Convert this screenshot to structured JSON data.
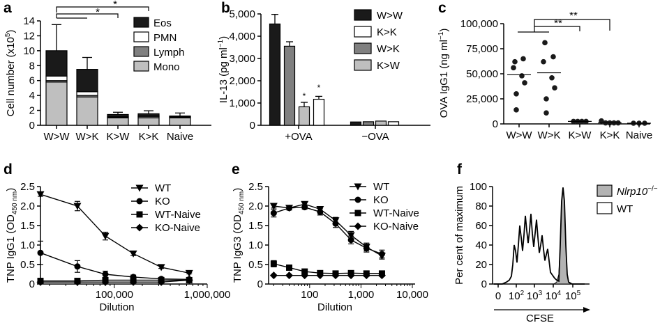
{
  "figure_labels": [
    "a",
    "b",
    "c",
    "d",
    "e",
    "f"
  ],
  "colors": {
    "eos": "#1a1a1a",
    "pmn": "#ffffff",
    "lymph": "#808080",
    "mono": "#bfbfbf",
    "ko_fill": "#b3b3b3",
    "wt_line": "#000000"
  },
  "chart_data": [
    {
      "id": "a",
      "type": "bar",
      "stacked": true,
      "ylabel": "Cell number (x10",
      "ylabel_sup": "5",
      "ylabel_end": ")",
      "ylim": [
        0,
        14
      ],
      "yticks": [
        "0",
        "2",
        "4",
        "6",
        "8",
        "10",
        "12",
        "14"
      ],
      "categories": [
        "W>W",
        "W>K",
        "K>W",
        "K>K",
        "Naive"
      ],
      "series": [
        {
          "name": "Mono",
          "values": [
            5.8,
            3.8,
            1.0,
            1.0,
            1.0
          ]
        },
        {
          "name": "Lymph",
          "values": [
            0.2,
            0.2,
            0.1,
            0.2,
            0.1
          ]
        },
        {
          "name": "PMN",
          "values": [
            0.6,
            0.5,
            0.05,
            0.05,
            0.05
          ]
        },
        {
          "name": "Eos",
          "values": [
            3.4,
            3.0,
            0.3,
            0.3,
            0.1
          ]
        }
      ],
      "errors": [
        3.5,
        1.6,
        0.3,
        0.4,
        0.4
      ],
      "legend_order": [
        "Eos",
        "PMN",
        "Lymph",
        "Mono"
      ],
      "stars": [
        "*",
        "*"
      ]
    },
    {
      "id": "b",
      "type": "bar",
      "ylabel": "IL-13 (pg ml",
      "ylabel_sup": "−1",
      "ylabel_end": ")",
      "ylim": [
        0,
        5000
      ],
      "yticks": [
        "0",
        "1,000",
        "2,000",
        "3,000",
        "4,000",
        "5,000"
      ],
      "categories": [
        "+OVA",
        "−OVA"
      ],
      "series": [
        {
          "name": "W>W",
          "values": [
            4550,
            150
          ]
        },
        {
          "name": "W>K",
          "values": [
            3550,
            160
          ]
        },
        {
          "name": "K>W",
          "values": [
            830,
            190
          ]
        },
        {
          "name": "K>K",
          "values": [
            1170,
            160
          ]
        }
      ],
      "errors": [
        [
          430,
          0
        ],
        [
          200,
          0
        ],
        [
          200,
          0
        ],
        [
          130,
          0
        ]
      ],
      "legend_order": [
        "W>W",
        "K>K",
        "W>K",
        "K>W"
      ],
      "stars": [
        "*",
        "*"
      ]
    },
    {
      "id": "c",
      "type": "scatter",
      "ylabel": "OVA IgG1 (ng ml",
      "ylabel_sup": "−1",
      "ylabel_end": ")",
      "ylim": [
        0,
        100000
      ],
      "yticks": [
        "0",
        "25,000",
        "50,000",
        "75,000",
        "100,000"
      ],
      "categories": [
        "W>W",
        "W>K",
        "K>W",
        "K>K",
        "Naive"
      ],
      "points": [
        [
          62000,
          65000,
          56000,
          48000,
          41000,
          30000,
          14000
        ],
        [
          81000,
          67000,
          62000,
          46000,
          36000,
          25000,
          11000
        ],
        [
          2500,
          2500,
          2500,
          2500
        ],
        [
          3000,
          1000,
          1000,
          1000,
          1000
        ],
        [
          0,
          0,
          0
        ]
      ],
      "medians": [
        49000,
        51000,
        2500,
        1000,
        0
      ],
      "stars": [
        "**",
        "**"
      ]
    },
    {
      "id": "d",
      "type": "line",
      "log_x": true,
      "xlabel": "Dilution",
      "ylabel": "TNP IgG1 (OD",
      "ylabel_sub": "450 nm",
      "ylabel_end": ")",
      "ylim": [
        0,
        2.5
      ],
      "xlim": [
        16000,
        1000000
      ],
      "yticks": [
        "0",
        "0.5",
        "1.0",
        "1.5",
        "2.0",
        "2.5"
      ],
      "xticks": [
        {
          "value": 100000,
          "label": "100,000"
        },
        {
          "value": 1000000,
          "label": "1,000,000"
        }
      ],
      "x": [
        16000,
        40000,
        80000,
        160000,
        320000,
        640000
      ],
      "series": [
        {
          "name": "WT",
          "marker": "triangle-down",
          "values": [
            2.3,
            2.0,
            1.23,
            0.78,
            0.43,
            0.28
          ],
          "errors": [
            0.05,
            0.12,
            0.1,
            0.05,
            0.03,
            0.02
          ]
        },
        {
          "name": "KO",
          "marker": "circle",
          "values": [
            0.8,
            0.45,
            0.25,
            0.18,
            0.13,
            0.12
          ],
          "errors": [
            0.3,
            0.15,
            0.08,
            0.05,
            0.03,
            0.02
          ]
        },
        {
          "name": "WT-Naive",
          "marker": "square",
          "values": [
            0.08,
            0.08,
            0.1,
            0.1,
            0.1,
            0.1
          ],
          "errors": [
            0,
            0,
            0,
            0,
            0,
            0
          ]
        },
        {
          "name": "KO-Naive",
          "marker": "diamond",
          "values": [
            0.05,
            0.05,
            0.05,
            0.05,
            0.05,
            0.1
          ],
          "errors": [
            0,
            0,
            0,
            0,
            0,
            0
          ]
        }
      ]
    },
    {
      "id": "e",
      "type": "line",
      "log_x": true,
      "xlabel": "Dilution",
      "ylabel": "TNP IgG3 (OD",
      "ylabel_sub": "450 nm",
      "ylabel_end": ")",
      "ylim": [
        0,
        2.5
      ],
      "xlim": [
        18,
        10000
      ],
      "yticks": [
        "0",
        "0.5",
        "1.0",
        "1.5",
        "2.0",
        "2.5"
      ],
      "xticks": [
        {
          "value": 100,
          "label": "100"
        },
        {
          "value": 1000,
          "label": "1,000"
        },
        {
          "value": 10000,
          "label": "10,000"
        }
      ],
      "x": [
        20,
        40,
        80,
        160,
        320,
        640,
        1280,
        2560
      ],
      "series": [
        {
          "name": "WT",
          "marker": "triangle-down",
          "values": [
            2.0,
            1.95,
            2.05,
            1.92,
            1.63,
            1.25,
            0.95,
            0.72
          ],
          "errors": [
            0.05,
            0.05,
            0.06,
            0.05,
            0.08,
            0.1,
            0.1,
            0.08
          ]
        },
        {
          "name": "KO",
          "marker": "circle",
          "values": [
            1.82,
            1.95,
            1.97,
            1.85,
            1.55,
            1.13,
            0.92,
            0.77
          ],
          "errors": [
            0.1,
            0.05,
            0.05,
            0.08,
            0.1,
            0.1,
            0.1,
            0.1
          ]
        },
        {
          "name": "WT-Naive",
          "marker": "square",
          "values": [
            0.52,
            0.42,
            0.32,
            0.28,
            0.27,
            0.28,
            0.27,
            0.27
          ],
          "errors": [
            0.08,
            0.05,
            0.04,
            0.03,
            0.02,
            0.02,
            0.02,
            0.02
          ]
        },
        {
          "name": "KO-Naive",
          "marker": "diamond",
          "values": [
            0.22,
            0.22,
            0.22,
            0.22,
            0.22,
            0.22,
            0.22,
            0.22
          ],
          "errors": [
            0,
            0,
            0,
            0,
            0,
            0,
            0,
            0
          ]
        }
      ]
    },
    {
      "id": "f",
      "type": "area",
      "xlabel": "CFSE",
      "ylabel": "Per cent of maximum",
      "ylim": [
        0,
        100
      ],
      "yticks": [
        "0",
        "20",
        "40",
        "60",
        "80",
        "100"
      ],
      "xticks": [
        "0",
        "10",
        "10",
        "10",
        "10"
      ],
      "xtick_exps": [
        "",
        "2",
        "3",
        "4",
        "5"
      ],
      "legend": [
        {
          "name": "Nlrp10",
          "sup": "−/−"
        },
        {
          "name": "WT",
          "sup": ""
        }
      ]
    }
  ]
}
